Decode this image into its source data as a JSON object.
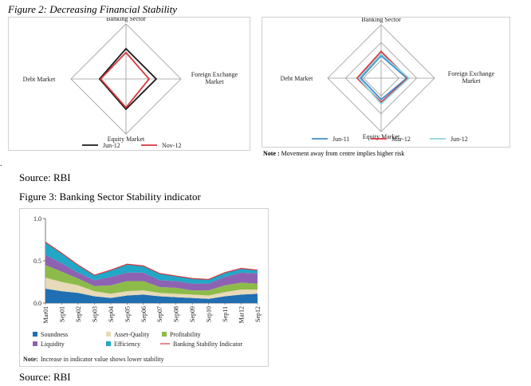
{
  "figure2": {
    "title": "Figure 2: Decreasing Financial Stability",
    "left": {
      "axes": [
        "Banking Sector",
        "Foreign Exchange\nMarket",
        "Equity Market",
        "Debt Market"
      ],
      "legend": [
        {
          "label": "Jun-12",
          "color": "#1a1a1a"
        },
        {
          "label": "Nov-12",
          "color": "#d9363e"
        }
      ]
    },
    "right": {
      "axes": [
        "Banking Sector",
        "Foreign Exchange\nMarket",
        "Equity Market",
        "Debt Market"
      ],
      "legend": [
        {
          "label": "Jun-11",
          "color": "#3b8fd0"
        },
        {
          "label": "Mar-12",
          "color": "#d9363e"
        },
        {
          "label": "Jun-12",
          "color": "#8fd3dc"
        }
      ],
      "note_bold": "Note :",
      "note_text": "Movement away from centre implies higher risk"
    },
    "source": "Source: RBI"
  },
  "figure3": {
    "title": "Figure 3: Banking Sector Stability indicator",
    "source": "Source: RBI",
    "note_bold": "Note:",
    "note_text": "Increase in indicator value shows lower stability"
  },
  "chart_data": [
    {
      "type": "line",
      "title": "",
      "axes": [
        "Banking Sector",
        "Foreign Exchange Market",
        "Equity Market",
        "Debt Market"
      ],
      "series": [
        {
          "name": "Jun-12",
          "values": [
            0.55,
            0.55,
            0.55,
            0.48
          ]
        },
        {
          "name": "Nov-12",
          "values": [
            0.48,
            0.42,
            0.52,
            0.46
          ]
        }
      ]
    },
    {
      "type": "line",
      "title": "",
      "axes": [
        "Banking Sector",
        "Foreign Exchange Market",
        "Equity Market",
        "Debt Market"
      ],
      "series": [
        {
          "name": "Jun-11",
          "values": [
            0.42,
            0.48,
            0.4,
            0.38
          ]
        },
        {
          "name": "Mar-12",
          "values": [
            0.5,
            0.5,
            0.45,
            0.45
          ]
        },
        {
          "name": "Jun-12",
          "values": [
            0.45,
            0.52,
            0.48,
            0.42
          ]
        }
      ]
    },
    {
      "type": "area",
      "title": "",
      "ylim": [
        0,
        1.0
      ],
      "yticks": [
        "1.0",
        "0.5",
        "0.0"
      ],
      "x": [
        "Mar01",
        "Sep01",
        "Sep02",
        "Sep03",
        "Sep04",
        "Sep05",
        "Sep06",
        "Sep07",
        "Sep08",
        "Sep09",
        "Sep10",
        "Sep11",
        "Mar12",
        "Sep12"
      ],
      "series": [
        {
          "name": "Soundness",
          "color": "#1f6fb2",
          "values": [
            0.17,
            0.14,
            0.12,
            0.08,
            0.06,
            0.09,
            0.1,
            0.08,
            0.07,
            0.06,
            0.05,
            0.08,
            0.1,
            0.11
          ]
        },
        {
          "name": "Asset-Quality",
          "color": "#e8d9b8",
          "values": [
            0.13,
            0.11,
            0.09,
            0.06,
            0.05,
            0.05,
            0.05,
            0.04,
            0.04,
            0.04,
            0.04,
            0.05,
            0.06,
            0.05
          ]
        },
        {
          "name": "Profitability",
          "color": "#8dbb4a",
          "values": [
            0.15,
            0.12,
            0.08,
            0.06,
            0.1,
            0.12,
            0.11,
            0.07,
            0.07,
            0.05,
            0.06,
            0.08,
            0.08,
            0.07
          ]
        },
        {
          "name": "Liquidity",
          "color": "#8e62b3",
          "values": [
            0.12,
            0.1,
            0.07,
            0.07,
            0.1,
            0.1,
            0.1,
            0.08,
            0.08,
            0.08,
            0.08,
            0.1,
            0.12,
            0.12
          ]
        },
        {
          "name": "Efficiency",
          "color": "#22a7c6",
          "values": [
            0.15,
            0.12,
            0.09,
            0.06,
            0.08,
            0.1,
            0.08,
            0.08,
            0.06,
            0.06,
            0.05,
            0.05,
            0.05,
            0.04
          ]
        }
      ],
      "line": {
        "name": "Banking Stability Indicator",
        "color": "#d9363e",
        "values": [
          0.72,
          0.59,
          0.45,
          0.33,
          0.39,
          0.46,
          0.44,
          0.35,
          0.32,
          0.29,
          0.28,
          0.36,
          0.41,
          0.39
        ]
      }
    }
  ]
}
